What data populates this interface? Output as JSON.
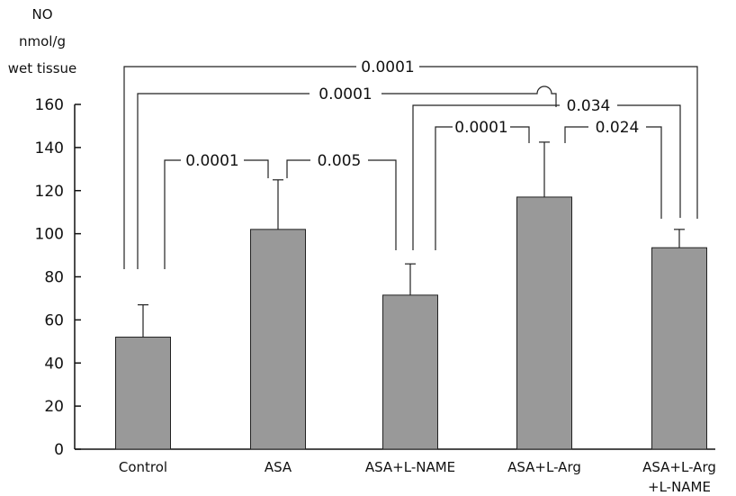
{
  "chart_data": {
    "type": "bar",
    "ylabel_lines": [
      "NO",
      "nmol/g",
      "wet tissue"
    ],
    "categories": [
      [
        "Control"
      ],
      [
        "ASA"
      ],
      [
        "ASA+L-NAME"
      ],
      [
        "ASA+L-Arg"
      ],
      [
        "ASA+L-Arg",
        "+L-NAME"
      ]
    ],
    "values": [
      52,
      102,
      71.5,
      117,
      93.5
    ],
    "errors": [
      15,
      23,
      14.5,
      25.5,
      8.5
    ],
    "ylim": [
      0,
      160
    ],
    "yticks": [
      0,
      20,
      40,
      60,
      80,
      100,
      120,
      140,
      160
    ],
    "bar_color": "#999999",
    "comparisons": [
      {
        "from": "Control",
        "to": "ASA+L-Arg+L-NAME",
        "p": "0.0001"
      },
      {
        "from": "Control",
        "to": "ASA+L-Arg",
        "p": "0.0001"
      },
      {
        "from": "ASA+L-NAME",
        "to": "ASA+L-Arg+L-NAME",
        "p": "0.034"
      },
      {
        "from": "Control",
        "to": "ASA",
        "p": "0.0001"
      },
      {
        "from": "ASA",
        "to": "ASA+L-NAME",
        "p": "0.005"
      },
      {
        "from": "ASA+L-NAME",
        "to": "ASA+L-Arg",
        "p": "0.0001"
      },
      {
        "from": "ASA+L-Arg",
        "to": "ASA+L-Arg+L-NAME",
        "p": "0.024"
      }
    ]
  }
}
